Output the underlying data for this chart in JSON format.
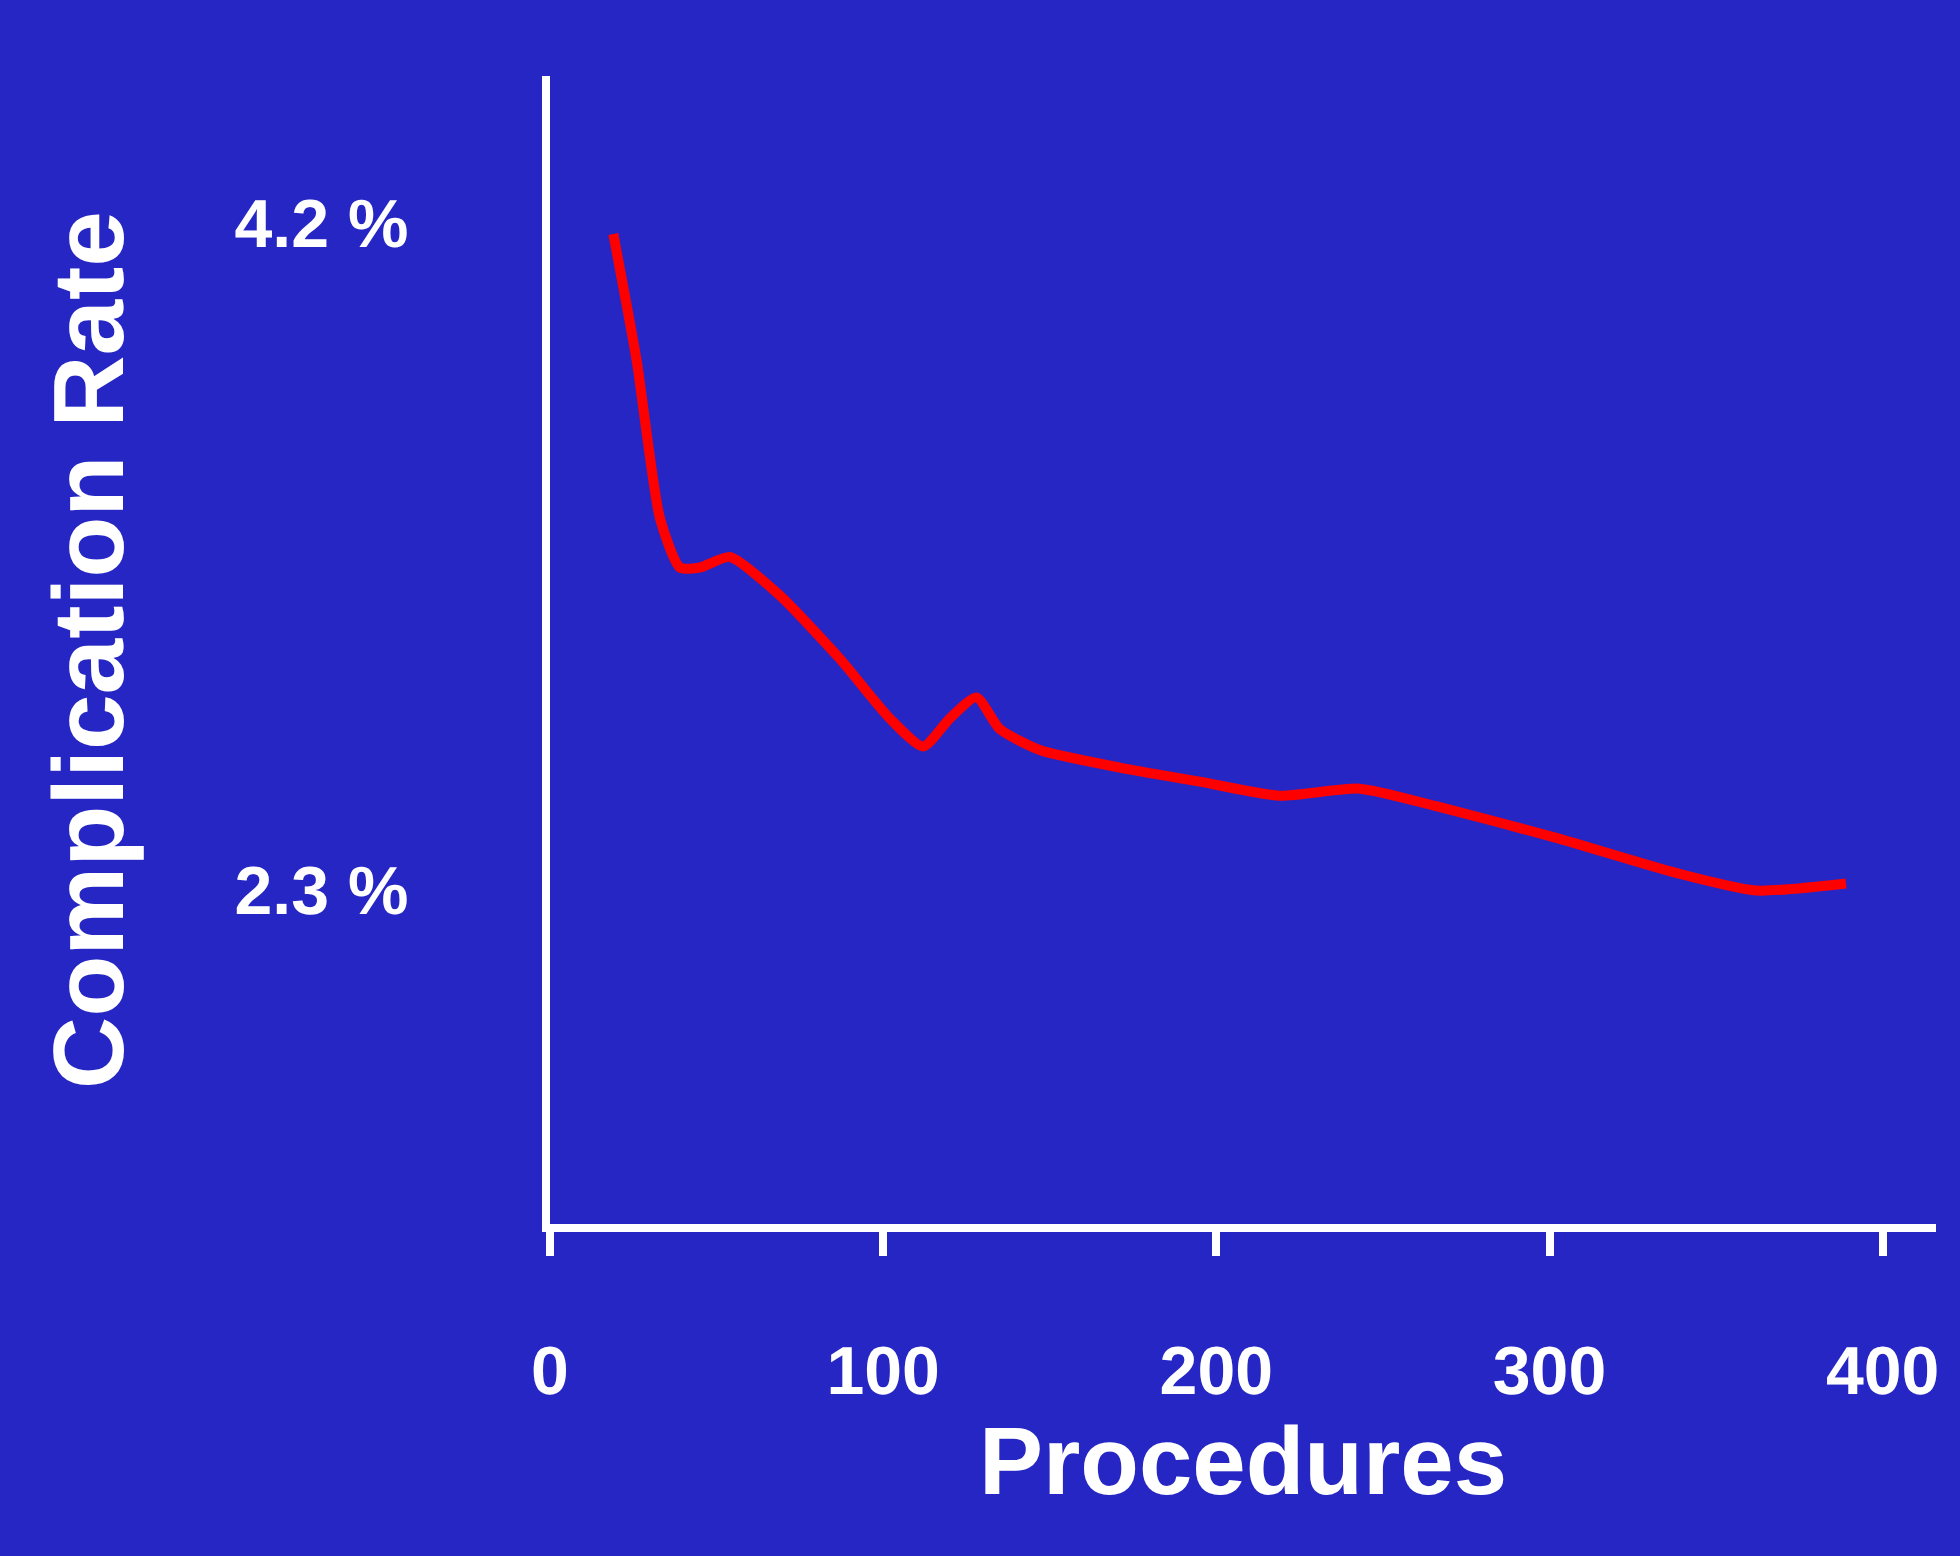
{
  "chart_data": {
    "type": "line",
    "xlabel": "Procedures",
    "ylabel": "Complication Rate",
    "x": [
      19,
      26,
      33,
      39,
      45,
      54,
      69,
      87,
      102,
      112,
      120,
      128,
      135,
      147,
      171,
      195,
      219,
      243,
      266,
      302,
      338,
      362,
      389
    ],
    "series": [
      {
        "color": "#ff0000",
        "values": [
          4.17,
          3.81,
          3.36,
          3.22,
          3.22,
          3.25,
          3.14,
          2.96,
          2.79,
          2.71,
          2.79,
          2.85,
          2.76,
          2.7,
          2.65,
          2.61,
          2.57,
          2.59,
          2.54,
          2.45,
          2.35,
          2.3,
          2.32
        ]
      }
    ],
    "xlim": [
      0,
      416
    ],
    "ylim": [
      1.35,
      4.62
    ],
    "xticks": [
      0,
      100,
      200,
      300,
      400
    ],
    "yticks": [
      {
        "value": 4.2,
        "label": "4.2 %"
      },
      {
        "value": 2.3,
        "label": "2.3 %"
      }
    ],
    "grid": false,
    "marker": "none",
    "line_style": "solid"
  }
}
